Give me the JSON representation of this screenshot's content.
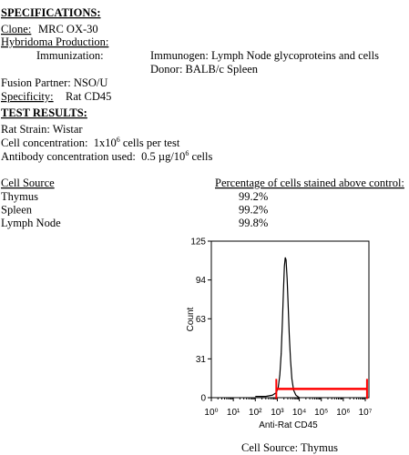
{
  "specifications": {
    "heading": "SPECIFICATIONS:",
    "clone": {
      "label": "Clone:",
      "value": "MRC OX-30"
    },
    "hybridoma": "Hybridoma Production:",
    "immunization": {
      "label": "Immunization:",
      "immunogen": "Immunogen:  Lymph Node glycoproteins and cells",
      "donor": "Donor:  BALB/c Spleen"
    },
    "fusion_partner": "Fusion Partner:  NSO/U",
    "specificity": {
      "label": "Specificity:",
      "value": "Rat CD45"
    }
  },
  "test_results": {
    "heading": "TEST RESULTS:",
    "rat_strain": "Rat Strain: Wistar",
    "cell_concentration": [
      "Cell concentration:  1x10",
      "6",
      " cells per test"
    ],
    "antibody_concentration": [
      "Antibody concentration used:  0.5 µg/10",
      "6",
      " cells"
    ]
  },
  "table": {
    "headers": [
      "Cell Source",
      "Percentage of cells stained above control:"
    ],
    "rows": [
      [
        "Thymus",
        "99.2%"
      ],
      [
        "Spleen",
        "99.2%"
      ],
      [
        "Lymph Node",
        "99.8%"
      ]
    ]
  },
  "chart_data": {
    "type": "line",
    "x_label": "Anti-Rat CD45",
    "y_label": "Count",
    "xscale": "log",
    "xlim": [
      1,
      10000000
    ],
    "ylim": [
      0,
      125
    ],
    "xticks": [
      {
        "value": 1,
        "label": "10⁰"
      },
      {
        "value": 10,
        "label": "10¹"
      },
      {
        "value": 100,
        "label": "10²"
      },
      {
        "value": 1000,
        "label": "10³"
      },
      {
        "value": 10000,
        "label": "10⁴"
      },
      {
        "value": 100000,
        "label": "10⁵"
      },
      {
        "value": 1000000,
        "label": "10⁶"
      },
      {
        "value": 10000000,
        "label": "10⁷"
      }
    ],
    "yticks": [
      0,
      31,
      63,
      94,
      125
    ],
    "series": [
      {
        "color": "#000000",
        "x": [
          100,
          300,
          600,
          900,
          1100,
          1300,
          1500,
          1700,
          1900,
          2100,
          2300,
          2500,
          2800,
          3100,
          3500,
          4000,
          4600,
          5500,
          7000,
          10000
        ],
        "values": [
          1,
          1,
          2,
          4,
          8,
          18,
          35,
          60,
          85,
          105,
          112,
          110,
          95,
          75,
          50,
          30,
          15,
          6,
          2,
          0
        ]
      }
    ],
    "gate": {
      "x": [
        900,
        12000000
      ],
      "y": 7,
      "color": "#ff0000"
    }
  },
  "caption": "Cell Source: Thymus"
}
